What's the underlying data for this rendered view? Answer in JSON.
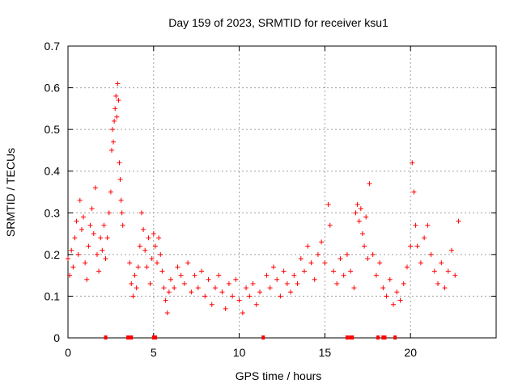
{
  "chart_data": {
    "type": "scatter",
    "title": "Day 159 of 2023, SRMTID for receiver ksu1",
    "xlabel": "GPS time / hours",
    "ylabel": "SRMTID / TECUs",
    "xlim": [
      0,
      25
    ],
    "ylim": [
      0,
      0.7
    ],
    "xticks": [
      0,
      5,
      10,
      15,
      20
    ],
    "xtick_labels": [
      "0",
      "5",
      "10",
      "15",
      "20"
    ],
    "yticks": [
      0,
      0.1,
      0.2,
      0.3,
      0.4,
      0.5,
      0.6,
      0.7
    ],
    "ytick_labels": [
      "0",
      "0.1",
      "0.2",
      "0.3",
      "0.4",
      "0.5",
      "0.6",
      "0.7"
    ],
    "grid": true,
    "marker": "+",
    "color": "#ff0000",
    "series": [
      {
        "name": "SRMTID",
        "points": [
          [
            0.0,
            0.19
          ],
          [
            0.1,
            0.15
          ],
          [
            0.2,
            0.21
          ],
          [
            0.3,
            0.17
          ],
          [
            0.4,
            0.24
          ],
          [
            0.5,
            0.28
          ],
          [
            0.6,
            0.2
          ],
          [
            0.7,
            0.33
          ],
          [
            0.8,
            0.26
          ],
          [
            0.9,
            0.29
          ],
          [
            1.0,
            0.18
          ],
          [
            1.1,
            0.14
          ],
          [
            1.2,
            0.22
          ],
          [
            1.3,
            0.27
          ],
          [
            1.4,
            0.31
          ],
          [
            1.5,
            0.25
          ],
          [
            1.6,
            0.36
          ],
          [
            1.7,
            0.2
          ],
          [
            1.8,
            0.16
          ],
          [
            1.9,
            0.24
          ],
          [
            2.0,
            0.21
          ],
          [
            2.1,
            0.27
          ],
          [
            2.2,
            0.19
          ],
          [
            2.3,
            0.24
          ],
          [
            2.4,
            0.3
          ],
          [
            2.5,
            0.35
          ],
          [
            2.55,
            0.45
          ],
          [
            2.6,
            0.5
          ],
          [
            2.65,
            0.47
          ],
          [
            2.7,
            0.52
          ],
          [
            2.75,
            0.55
          ],
          [
            2.8,
            0.58
          ],
          [
            2.85,
            0.53
          ],
          [
            2.9,
            0.61
          ],
          [
            2.95,
            0.57
          ],
          [
            3.0,
            0.42
          ],
          [
            3.05,
            0.38
          ],
          [
            3.1,
            0.33
          ],
          [
            3.15,
            0.3
          ],
          [
            3.2,
            0.27
          ],
          [
            3.6,
            0.18
          ],
          [
            3.7,
            0.13
          ],
          [
            3.8,
            0.1
          ],
          [
            3.9,
            0.15
          ],
          [
            4.0,
            0.12
          ],
          [
            4.1,
            0.17
          ],
          [
            4.2,
            0.22
          ],
          [
            4.3,
            0.3
          ],
          [
            4.4,
            0.26
          ],
          [
            4.5,
            0.21
          ],
          [
            4.6,
            0.17
          ],
          [
            4.7,
            0.24
          ],
          [
            4.8,
            0.13
          ],
          [
            4.9,
            0.19
          ],
          [
            5.0,
            0.25
          ],
          [
            5.1,
            0.22
          ],
          [
            5.2,
            0.18
          ],
          [
            5.3,
            0.24
          ],
          [
            5.4,
            0.2
          ],
          [
            5.5,
            0.16
          ],
          [
            5.6,
            0.12
          ],
          [
            5.7,
            0.09
          ],
          [
            5.8,
            0.06
          ],
          [
            5.9,
            0.11
          ],
          [
            6.0,
            0.14
          ],
          [
            6.2,
            0.12
          ],
          [
            6.4,
            0.17
          ],
          [
            6.6,
            0.15
          ],
          [
            6.8,
            0.13
          ],
          [
            7.0,
            0.18
          ],
          [
            7.2,
            0.11
          ],
          [
            7.4,
            0.15
          ],
          [
            7.6,
            0.12
          ],
          [
            7.8,
            0.16
          ],
          [
            8.0,
            0.1
          ],
          [
            8.2,
            0.14
          ],
          [
            8.4,
            0.08
          ],
          [
            8.6,
            0.12
          ],
          [
            8.8,
            0.15
          ],
          [
            9.0,
            0.11
          ],
          [
            9.2,
            0.07
          ],
          [
            9.4,
            0.13
          ],
          [
            9.6,
            0.1
          ],
          [
            9.8,
            0.14
          ],
          [
            10.0,
            0.09
          ],
          [
            10.2,
            0.06
          ],
          [
            10.4,
            0.12
          ],
          [
            10.6,
            0.1
          ],
          [
            10.8,
            0.13
          ],
          [
            11.0,
            0.08
          ],
          [
            11.2,
            0.11
          ],
          [
            11.6,
            0.15
          ],
          [
            11.8,
            0.12
          ],
          [
            12.0,
            0.17
          ],
          [
            12.2,
            0.14
          ],
          [
            12.4,
            0.1
          ],
          [
            12.6,
            0.16
          ],
          [
            12.8,
            0.13
          ],
          [
            13.0,
            0.11
          ],
          [
            13.2,
            0.15
          ],
          [
            13.4,
            0.13
          ],
          [
            13.6,
            0.19
          ],
          [
            13.8,
            0.16
          ],
          [
            14.0,
            0.22
          ],
          [
            14.2,
            0.18
          ],
          [
            14.4,
            0.14
          ],
          [
            14.6,
            0.2
          ],
          [
            14.8,
            0.23
          ],
          [
            15.0,
            0.18
          ],
          [
            15.2,
            0.32
          ],
          [
            15.3,
            0.27
          ],
          [
            15.5,
            0.16
          ],
          [
            15.7,
            0.13
          ],
          [
            15.9,
            0.19
          ],
          [
            16.1,
            0.15
          ],
          [
            16.3,
            0.2
          ],
          [
            16.5,
            0.16
          ],
          [
            16.7,
            0.12
          ],
          [
            16.8,
            0.3
          ],
          [
            16.9,
            0.32
          ],
          [
            17.0,
            0.28
          ],
          [
            17.1,
            0.31
          ],
          [
            17.2,
            0.25
          ],
          [
            17.3,
            0.22
          ],
          [
            17.4,
            0.29
          ],
          [
            17.5,
            0.19
          ],
          [
            17.6,
            0.37
          ],
          [
            17.8,
            0.2
          ],
          [
            18.0,
            0.15
          ],
          [
            18.2,
            0.18
          ],
          [
            18.4,
            0.12
          ],
          [
            18.6,
            0.1
          ],
          [
            18.8,
            0.14
          ],
          [
            19.0,
            0.08
          ],
          [
            19.2,
            0.11
          ],
          [
            19.4,
            0.09
          ],
          [
            19.6,
            0.13
          ],
          [
            19.8,
            0.17
          ],
          [
            20.0,
            0.22
          ],
          [
            20.1,
            0.42
          ],
          [
            20.2,
            0.35
          ],
          [
            20.3,
            0.27
          ],
          [
            20.4,
            0.22
          ],
          [
            20.6,
            0.18
          ],
          [
            20.8,
            0.24
          ],
          [
            21.0,
            0.27
          ],
          [
            21.2,
            0.2
          ],
          [
            21.4,
            0.16
          ],
          [
            21.6,
            0.13
          ],
          [
            21.8,
            0.18
          ],
          [
            22.0,
            0.12
          ],
          [
            22.2,
            0.16
          ],
          [
            22.4,
            0.21
          ],
          [
            22.6,
            0.15
          ],
          [
            22.8,
            0.28
          ]
        ]
      }
    ],
    "gap_markers_x": [
      2.2,
      3.5,
      3.6,
      3.7,
      5.0,
      5.1,
      11.4,
      16.3,
      16.5,
      16.6,
      18.1,
      18.4,
      18.5,
      19.1
    ]
  }
}
